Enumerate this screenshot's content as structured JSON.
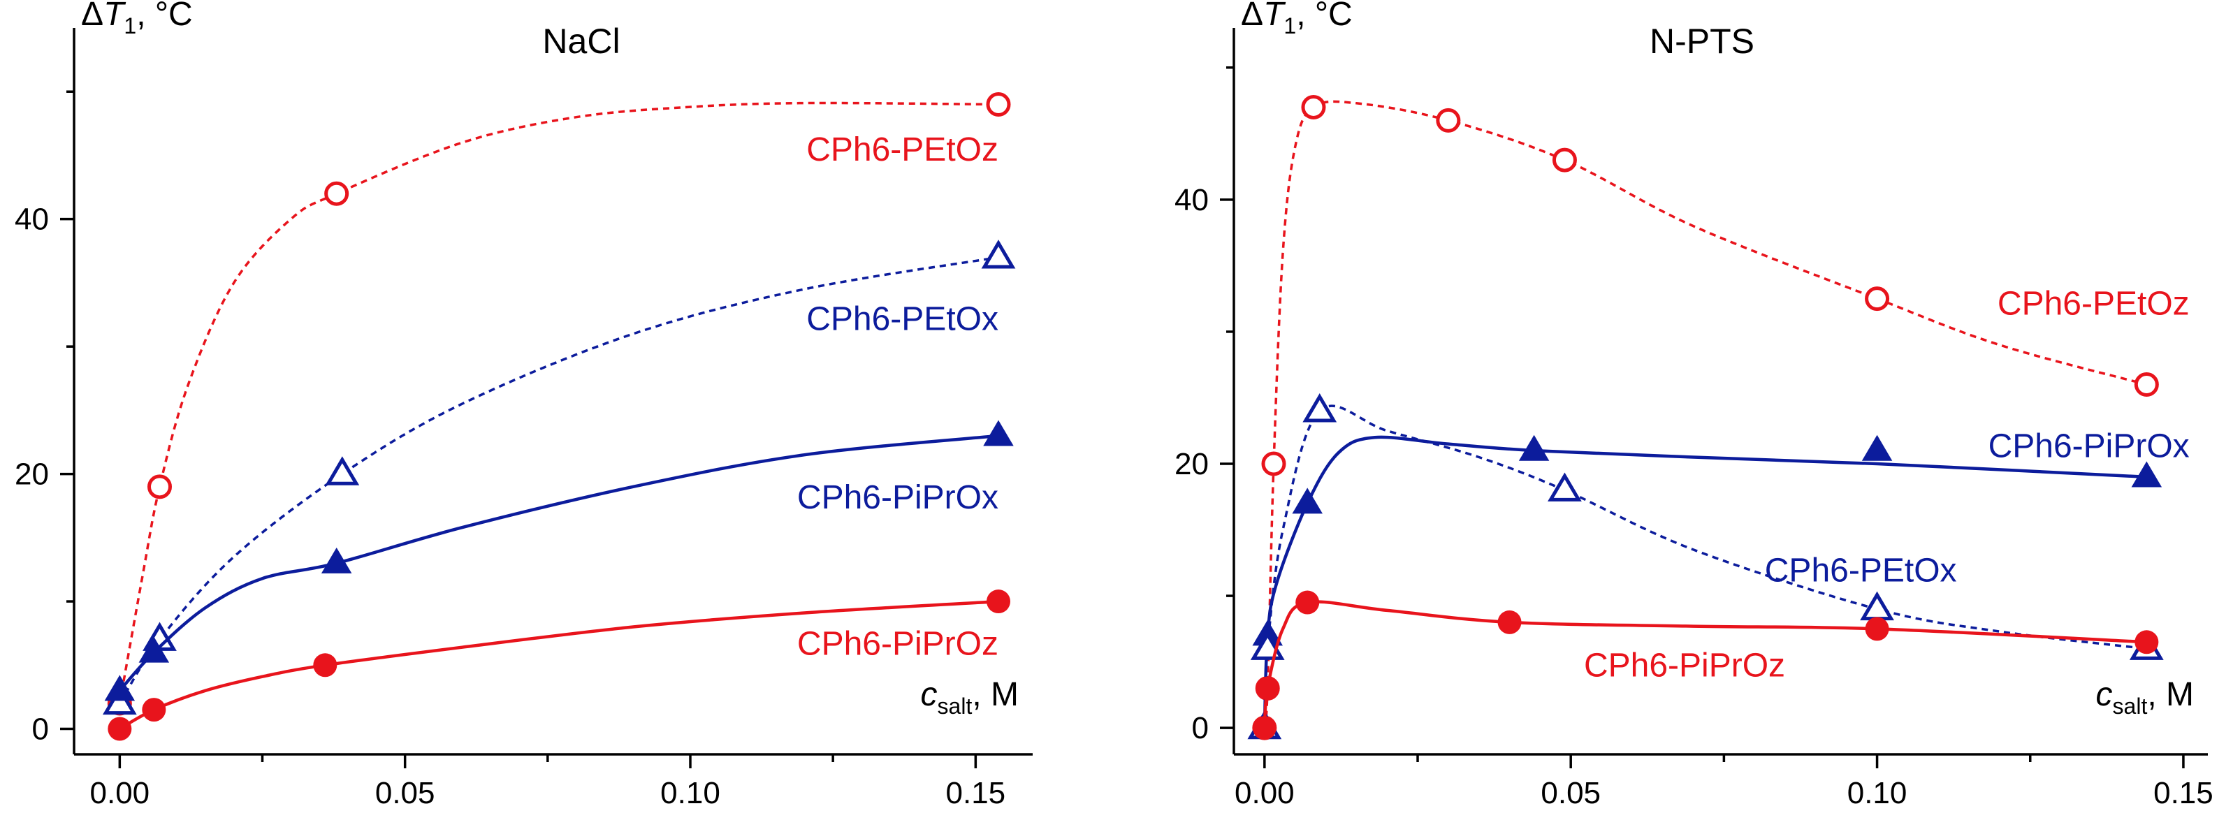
{
  "chart_data": [
    {
      "type": "scatter",
      "title": "NaCl",
      "ylabel": "ΔT1, °C",
      "xlabel": "csalt, M",
      "ylabel_parts": {
        "delta": "Δ",
        "var": "T",
        "sub": "1",
        "unit": ", °C"
      },
      "xlabel_parts": {
        "var": "c",
        "sub": "salt",
        "unit": ", M"
      },
      "xlim": [
        -0.008,
        0.16
      ],
      "ylim": [
        -2,
        55
      ],
      "xticks": [
        0.0,
        0.05,
        0.1,
        0.15
      ],
      "xtick_labels": [
        "0.00",
        "0.05",
        "0.10",
        "0.15"
      ],
      "yticks": [
        0,
        20,
        40
      ],
      "ytick_labels": [
        "0",
        "20",
        "40"
      ],
      "series": [
        {
          "name": "CPh6-PEtOz",
          "color": "#e8141c",
          "marker": "open-circle",
          "line": "dotted",
          "label_pos": [
            0.154,
            44.6
          ],
          "x": [
            0.0,
            0.007,
            0.038,
            0.154
          ],
          "y": [
            2,
            19,
            42,
            49
          ],
          "curve_x": [
            0.0,
            0.004,
            0.007,
            0.012,
            0.02,
            0.03,
            0.038,
            0.06,
            0.08,
            0.1,
            0.12,
            0.154
          ],
          "curve_y": [
            2,
            12,
            19,
            27,
            35,
            40,
            42,
            46,
            48,
            48.8,
            49.1,
            49
          ]
        },
        {
          "name": "CPh6-PEtOx",
          "color": "#0c1c9c",
          "marker": "open-triangle",
          "line": "dotted",
          "label_pos": [
            0.154,
            31.3
          ],
          "x": [
            0.0,
            0.007,
            0.039,
            0.154
          ],
          "y": [
            2,
            7,
            20,
            37
          ],
          "curve_x": [
            0.0,
            0.007,
            0.02,
            0.039,
            0.06,
            0.09,
            0.12,
            0.154
          ],
          "curve_y": [
            2,
            7,
            13.5,
            20,
            25.5,
            31,
            34.5,
            37
          ]
        },
        {
          "name": "CPh6-PiPrOx",
          "color": "#0c1c9c",
          "marker": "filled-triangle",
          "line": "solid",
          "label_pos": [
            0.154,
            17.3
          ],
          "x": [
            0.0,
            0.006,
            0.038,
            0.154
          ],
          "y": [
            3,
            6,
            13,
            23
          ],
          "curve_x": [
            0.0,
            0.006,
            0.015,
            0.025,
            0.038,
            0.06,
            0.09,
            0.12,
            0.154
          ],
          "curve_y": [
            3,
            6,
            9.5,
            11.8,
            13,
            15.8,
            19,
            21.5,
            23
          ]
        },
        {
          "name": "CPh6-PiPrOz",
          "color": "#e8141c",
          "marker": "filled-circle",
          "line": "solid",
          "label_pos": [
            0.154,
            5.8
          ],
          "x": [
            0.0,
            0.006,
            0.036,
            0.154
          ],
          "y": [
            0,
            1.5,
            5,
            10
          ],
          "curve_x": [
            0.0,
            0.006,
            0.015,
            0.025,
            0.036,
            0.06,
            0.09,
            0.12,
            0.154
          ],
          "curve_y": [
            0,
            1.5,
            3.0,
            4.1,
            5,
            6.4,
            8,
            9.1,
            10
          ]
        }
      ]
    },
    {
      "type": "scatter",
      "title": "N-PTS",
      "ylabel": "ΔT1, °C",
      "xlabel": "csalt, M",
      "ylabel_parts": {
        "delta": "Δ",
        "var": "T",
        "sub": "1",
        "unit": ", °C"
      },
      "xlabel_parts": {
        "var": "c",
        "sub": "salt",
        "unit": ", M"
      },
      "xlim": [
        -0.005,
        0.154
      ],
      "ylim": [
        -2,
        53
      ],
      "xticks": [
        0.0,
        0.05,
        0.1,
        0.15
      ],
      "xtick_labels": [
        "0.00",
        "0.05",
        "0.10",
        "0.15"
      ],
      "yticks": [
        0,
        20,
        40
      ],
      "ytick_labels": [
        "0",
        "20",
        "40"
      ],
      "series": [
        {
          "name": "CPh6-PEtOz",
          "color": "#e8141c",
          "marker": "open-circle",
          "line": "dotted",
          "label_pos": [
            0.151,
            31.3
          ],
          "x": [
            0.0,
            0.0005,
            0.0015,
            0.008,
            0.03,
            0.049,
            0.1,
            0.144
          ],
          "y": [
            0,
            3,
            20,
            47,
            46,
            43,
            32.5,
            26
          ],
          "curve_x": [
            0.0,
            0.0005,
            0.0015,
            0.003,
            0.005,
            0.008,
            0.015,
            0.03,
            0.049,
            0.07,
            0.1,
            0.12,
            0.144
          ],
          "curve_y": [
            0,
            3,
            20,
            36,
            44,
            47,
            47.3,
            46,
            43,
            38,
            32.5,
            29,
            26
          ]
        },
        {
          "name": "CPh6-PiPrOx",
          "color": "#0c1c9c",
          "marker": "filled-triangle",
          "line": "solid",
          "label_pos": [
            0.151,
            20.5
          ],
          "x": [
            0.0,
            0.0005,
            0.007,
            0.044,
            0.1,
            0.144
          ],
          "y": [
            0,
            7,
            17,
            21,
            21,
            19
          ],
          "curve_x": [
            0.0,
            0.0005,
            0.002,
            0.007,
            0.012,
            0.018,
            0.03,
            0.044,
            0.07,
            0.1,
            0.144
          ],
          "curve_y": [
            0,
            7,
            11,
            17,
            20.8,
            22,
            21.5,
            21,
            20.5,
            20,
            19
          ]
        },
        {
          "name": "CPh6-PEtOx",
          "color": "#0c1c9c",
          "marker": "open-triangle",
          "line": "dotted",
          "label_pos": [
            0.113,
            11.1
          ],
          "x": [
            0.0,
            0.0005,
            0.009,
            0.049,
            0.1,
            0.144
          ],
          "y": [
            0,
            6,
            24,
            18,
            9,
            6
          ],
          "curve_x": [
            0.0,
            0.0005,
            0.003,
            0.009,
            0.02,
            0.035,
            0.049,
            0.07,
            0.1,
            0.12,
            0.144
          ],
          "curve_y": [
            0,
            6,
            15,
            24,
            22.5,
            20.5,
            18,
            13.5,
            9,
            7.3,
            6
          ]
        },
        {
          "name": "CPh6-PiPrOz",
          "color": "#e8141c",
          "marker": "filled-circle",
          "line": "solid",
          "label_pos": [
            0.085,
            3.9
          ],
          "x": [
            0.0,
            0.0005,
            0.007,
            0.04,
            0.1,
            0.144
          ],
          "y": [
            0,
            3,
            9.5,
            8,
            7.5,
            6.5
          ],
          "curve_x": [
            0.0,
            0.0005,
            0.003,
            0.007,
            0.02,
            0.04,
            0.07,
            0.1,
            0.144
          ],
          "curve_y": [
            0,
            3,
            7.5,
            9.5,
            8.9,
            8,
            7.7,
            7.5,
            6.5
          ]
        }
      ]
    }
  ]
}
